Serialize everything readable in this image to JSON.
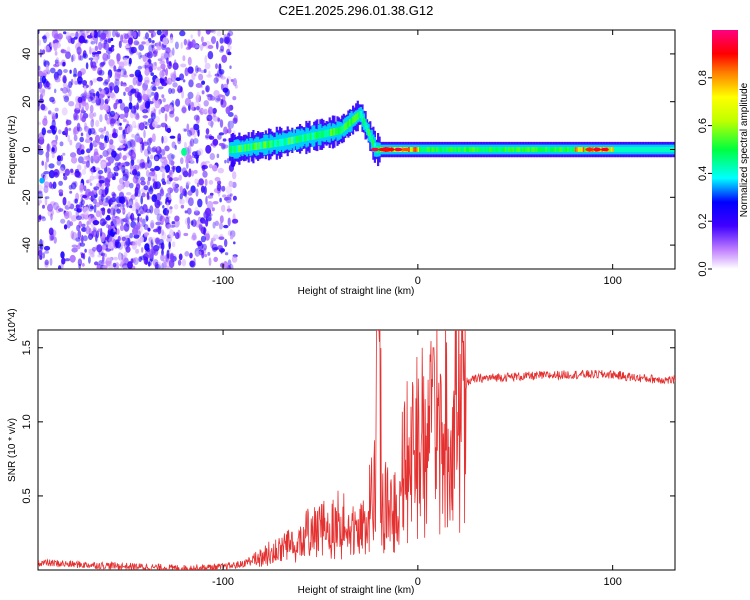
{
  "title": "C2E1.2025.296.01.38.G12",
  "chart_data": [
    {
      "type": "heatmap",
      "name": "spectrogram",
      "xlabel": "Height of straight line (km)",
      "ylabel": "Frequency (Hz)",
      "xlim": [
        -195,
        132
      ],
      "ylim": [
        -50,
        50
      ],
      "x_ticks": [
        -100,
        0,
        100
      ],
      "x_tick_labels": [
        "-100",
        "0",
        "100"
      ],
      "y_ticks": [
        -40,
        -20,
        0,
        20,
        40
      ],
      "y_tick_labels": [
        "-40",
        "-20",
        "0",
        "20",
        "40"
      ],
      "colorbar": {
        "label": "Normalized spectral amplitude",
        "range": [
          0,
          1
        ],
        "ticks": [
          0.0,
          0.2,
          0.4,
          0.6,
          0.8
        ],
        "tick_labels": [
          "0.0",
          "0.2",
          "0.4",
          "0.6",
          "0.8"
        ],
        "colors": [
          "#ffffff",
          "#c080ff",
          "#4000ff",
          "#0000ff",
          "#00ffff",
          "#00ff40",
          "#c0ff00",
          "#ffff00",
          "#ff8000",
          "#ff0000",
          "#ff0080"
        ]
      },
      "features": {
        "noise_region_x": [
          -195,
          -93
        ],
        "signal_start_x": -120,
        "signal_center_freq_hz": 0,
        "signal_drift": [
          [
            -95,
            0
          ],
          [
            -70,
            3
          ],
          [
            -40,
            8
          ],
          [
            -30,
            15
          ],
          [
            -22,
            0
          ],
          [
            0,
            0
          ],
          [
            130,
            0
          ]
        ],
        "peak_amplitude_region_x": [
          -25,
          100
        ]
      }
    },
    {
      "type": "line",
      "name": "snr",
      "xlabel": "Height of straight line (km)",
      "ylabel": "SNR (10 * v/v)",
      "y_multiplier": "(x10^4)",
      "xlim": [
        -195,
        132
      ],
      "ylim": [
        0,
        1.62
      ],
      "x_ticks": [
        -100,
        0,
        100
      ],
      "x_tick_labels": [
        "-100",
        "0",
        "100"
      ],
      "y_ticks": [
        0.5,
        1.0,
        1.5
      ],
      "y_tick_labels": [
        "0.5",
        "1.0",
        "1.5"
      ],
      "color": "#e53030",
      "series": [
        {
          "name": "SNR",
          "x": [
            -195,
            -180,
            -160,
            -140,
            -120,
            -100,
            -90,
            -80,
            -70,
            -60,
            -50,
            -40,
            -30,
            -25,
            -22,
            -20,
            -18,
            -15,
            -10,
            -5,
            0,
            5,
            10,
            15,
            20,
            25,
            30,
            40,
            60,
            80,
            100,
            110,
            120,
            132
          ],
          "y": [
            0.05,
            0.04,
            0.03,
            0.02,
            0.01,
            0.02,
            0.04,
            0.1,
            0.18,
            0.25,
            0.3,
            0.35,
            0.28,
            0.45,
            0.6,
            1.45,
            0.5,
            0.45,
            0.6,
            0.85,
            1.0,
            1.05,
            1.1,
            1.15,
            1.22,
            1.27,
            1.29,
            1.3,
            1.31,
            1.32,
            1.32,
            1.3,
            1.29,
            1.28
          ]
        }
      ]
    }
  ]
}
